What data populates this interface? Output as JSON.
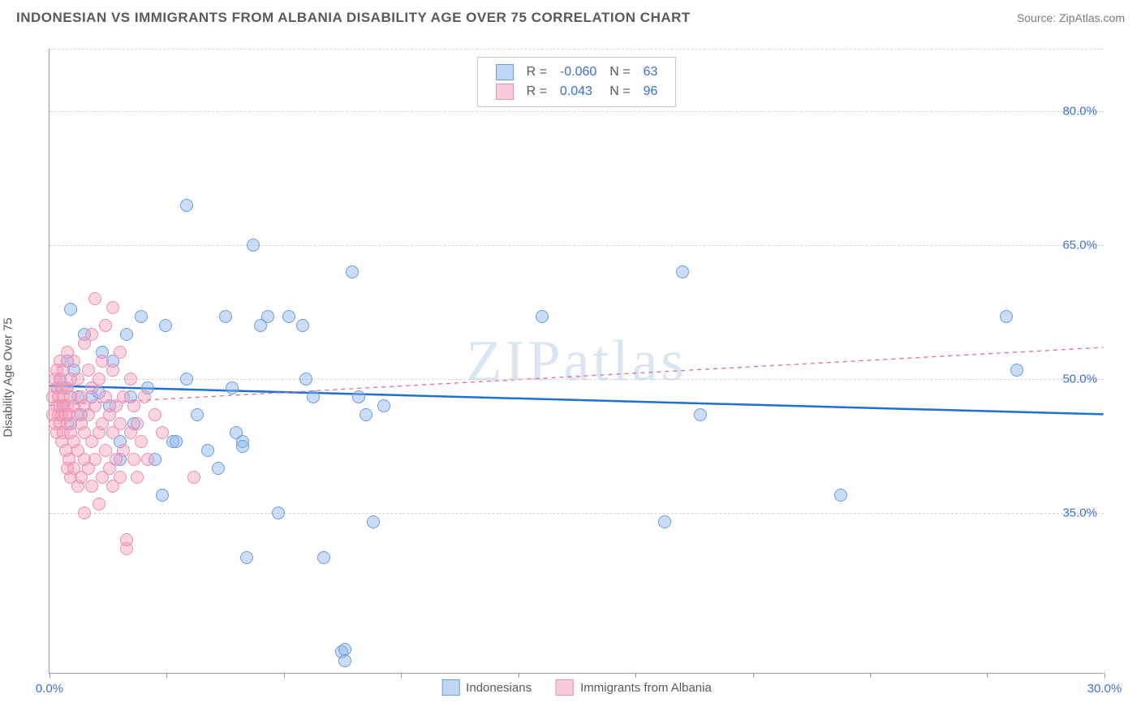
{
  "header": {
    "title": "INDONESIAN VS IMMIGRANTS FROM ALBANIA DISABILITY AGE OVER 75 CORRELATION CHART",
    "source": "Source: ZipAtlas.com"
  },
  "watermark": "ZIPatlas",
  "chart": {
    "type": "scatter",
    "ylabel": "Disability Age Over 75",
    "xlim": [
      0,
      30
    ],
    "ylim": [
      17,
      87
    ],
    "xtick_positions": [
      0,
      3.33,
      6.66,
      10,
      13.33,
      16.66,
      20,
      23.33,
      26.66,
      30
    ],
    "xtick_labels_shown": {
      "0": "0.0%",
      "30": "30.0%"
    },
    "ytick_lines": [
      35,
      50,
      65,
      80
    ],
    "ytick_labels": {
      "35": "35.0%",
      "50": "50.0%",
      "65": "65.0%",
      "80": "80.0%"
    },
    "background_color": "#ffffff",
    "grid_color": "#d5d5d5",
    "series": [
      {
        "name": "Indonesians",
        "marker_fill": "rgba(140,180,235,0.45)",
        "marker_stroke": "#6a9ed8",
        "marker_radius": 8,
        "trend": {
          "y_at_x0": 49.2,
          "y_at_xmax": 46.0,
          "color": "#1f6fd6",
          "width": 2.5,
          "dash": "none"
        },
        "R": "-0.060",
        "N": "63",
        "points": [
          [
            0.6,
            57.8
          ],
          [
            3.9,
            69.5
          ],
          [
            0.5,
            49
          ],
          [
            0.8,
            48
          ],
          [
            0.3,
            50
          ],
          [
            0.4,
            47
          ],
          [
            0.7,
            51
          ],
          [
            0.9,
            46
          ],
          [
            0.2,
            49
          ],
          [
            0.5,
            52
          ],
          [
            0.6,
            45
          ],
          [
            1.0,
            55
          ],
          [
            1.2,
            48
          ],
          [
            1.4,
            48.5
          ],
          [
            1.5,
            53
          ],
          [
            1.7,
            47
          ],
          [
            1.8,
            52
          ],
          [
            2.0,
            43
          ],
          [
            2.0,
            41
          ],
          [
            2.2,
            55
          ],
          [
            2.3,
            48
          ],
          [
            2.4,
            45
          ],
          [
            2.6,
            57
          ],
          [
            2.8,
            49
          ],
          [
            3.0,
            41
          ],
          [
            3.2,
            37
          ],
          [
            3.3,
            56
          ],
          [
            3.5,
            43
          ],
          [
            3.6,
            43
          ],
          [
            3.9,
            50
          ],
          [
            4.2,
            46
          ],
          [
            4.5,
            42
          ],
          [
            4.8,
            40
          ],
          [
            5.0,
            57
          ],
          [
            5.2,
            49
          ],
          [
            5.3,
            44
          ],
          [
            5.5,
            43
          ],
          [
            5.5,
            42.5
          ],
          [
            5.6,
            30
          ],
          [
            5.8,
            65
          ],
          [
            6.0,
            56
          ],
          [
            6.2,
            57
          ],
          [
            6.5,
            35
          ],
          [
            6.8,
            57
          ],
          [
            7.2,
            56
          ],
          [
            7.3,
            50
          ],
          [
            7.5,
            48
          ],
          [
            7.8,
            30
          ],
          [
            8.3,
            19.5
          ],
          [
            8.4,
            19.7
          ],
          [
            8.4,
            18.5
          ],
          [
            8.6,
            62
          ],
          [
            8.8,
            48
          ],
          [
            9.0,
            46
          ],
          [
            9.2,
            34
          ],
          [
            9.5,
            47
          ],
          [
            14.0,
            57
          ],
          [
            17.5,
            34
          ],
          [
            18.0,
            62
          ],
          [
            18.5,
            46
          ],
          [
            22.5,
            37
          ],
          [
            27.2,
            57
          ],
          [
            27.5,
            51
          ]
        ]
      },
      {
        "name": "Immigrants from Albania",
        "marker_fill": "rgba(245,160,190,0.45)",
        "marker_stroke": "#e890b0",
        "marker_radius": 8,
        "trend": {
          "y_at_x0": 47.0,
          "y_at_xmax": 53.5,
          "color": "#e06a98",
          "width": 1.3,
          "dash": "5,5"
        },
        "R": "0.043",
        "N": "96",
        "points": [
          [
            0.1,
            46
          ],
          [
            0.1,
            48
          ],
          [
            0.15,
            45
          ],
          [
            0.15,
            50
          ],
          [
            0.2,
            47
          ],
          [
            0.2,
            49
          ],
          [
            0.2,
            51
          ],
          [
            0.2,
            44
          ],
          [
            0.25,
            46
          ],
          [
            0.25,
            48
          ],
          [
            0.3,
            45
          ],
          [
            0.3,
            47
          ],
          [
            0.3,
            50
          ],
          [
            0.3,
            52
          ],
          [
            0.35,
            43
          ],
          [
            0.35,
            46
          ],
          [
            0.35,
            49
          ],
          [
            0.4,
            44
          ],
          [
            0.4,
            47
          ],
          [
            0.4,
            48
          ],
          [
            0.4,
            51
          ],
          [
            0.45,
            42
          ],
          [
            0.45,
            46
          ],
          [
            0.5,
            40
          ],
          [
            0.5,
            45
          ],
          [
            0.5,
            47
          ],
          [
            0.5,
            49
          ],
          [
            0.5,
            53
          ],
          [
            0.55,
            41
          ],
          [
            0.55,
            46
          ],
          [
            0.6,
            39
          ],
          [
            0.6,
            44
          ],
          [
            0.6,
            48
          ],
          [
            0.6,
            50
          ],
          [
            0.7,
            40
          ],
          [
            0.7,
            43
          ],
          [
            0.7,
            47
          ],
          [
            0.7,
            52
          ],
          [
            0.8,
            38
          ],
          [
            0.8,
            42
          ],
          [
            0.8,
            46
          ],
          [
            0.8,
            50
          ],
          [
            0.9,
            39
          ],
          [
            0.9,
            45
          ],
          [
            0.9,
            48
          ],
          [
            1.0,
            35
          ],
          [
            1.0,
            41
          ],
          [
            1.0,
            44
          ],
          [
            1.0,
            47
          ],
          [
            1.0,
            54
          ],
          [
            1.1,
            40
          ],
          [
            1.1,
            46
          ],
          [
            1.1,
            51
          ],
          [
            1.2,
            38
          ],
          [
            1.2,
            43
          ],
          [
            1.2,
            49
          ],
          [
            1.2,
            55
          ],
          [
            1.3,
            41
          ],
          [
            1.3,
            47
          ],
          [
            1.3,
            59
          ],
          [
            1.4,
            36
          ],
          [
            1.4,
            44
          ],
          [
            1.4,
            50
          ],
          [
            1.5,
            39
          ],
          [
            1.5,
            45
          ],
          [
            1.5,
            52
          ],
          [
            1.6,
            42
          ],
          [
            1.6,
            48
          ],
          [
            1.6,
            56
          ],
          [
            1.7,
            40
          ],
          [
            1.7,
            46
          ],
          [
            1.8,
            38
          ],
          [
            1.8,
            44
          ],
          [
            1.8,
            51
          ],
          [
            1.8,
            58
          ],
          [
            1.9,
            41
          ],
          [
            1.9,
            47
          ],
          [
            2.0,
            39
          ],
          [
            2.0,
            45
          ],
          [
            2.0,
            53
          ],
          [
            2.1,
            42
          ],
          [
            2.1,
            48
          ],
          [
            2.2,
            31
          ],
          [
            2.2,
            32
          ],
          [
            2.3,
            44
          ],
          [
            2.3,
            50
          ],
          [
            2.4,
            41
          ],
          [
            2.4,
            47
          ],
          [
            2.5,
            39
          ],
          [
            2.5,
            45
          ],
          [
            2.6,
            43
          ],
          [
            2.7,
            48
          ],
          [
            2.8,
            41
          ],
          [
            3.0,
            46
          ],
          [
            3.2,
            44
          ],
          [
            4.1,
            39
          ]
        ]
      }
    ],
    "legend_top": {
      "rows": [
        {
          "swatch_fill": "rgba(140,180,235,0.55)",
          "swatch_stroke": "#6a9ed8",
          "R_label": "R =",
          "R": "-0.060",
          "N_label": "N =",
          "N": "63"
        },
        {
          "swatch_fill": "rgba(245,160,190,0.55)",
          "swatch_stroke": "#e890b0",
          "R_label": "R =",
          "R": "0.043",
          "N_label": "N =",
          "N": "96"
        }
      ]
    },
    "legend_bottom": [
      {
        "swatch_fill": "rgba(140,180,235,0.55)",
        "swatch_stroke": "#6a9ed8",
        "label": "Indonesians"
      },
      {
        "swatch_fill": "rgba(245,160,190,0.55)",
        "swatch_stroke": "#e890b0",
        "label": "Immigrants from Albania"
      }
    ]
  }
}
